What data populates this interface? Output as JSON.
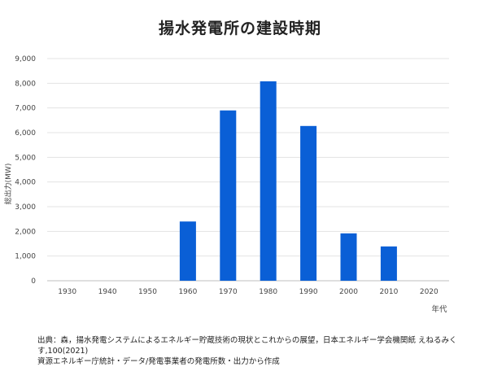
{
  "chart_data": {
    "type": "bar",
    "title": "揚水発電所の建設時期",
    "xlabel": "年代",
    "ylabel": "総出力(MW)",
    "categories": [
      "1930",
      "1940",
      "1950",
      "1960",
      "1970",
      "1980",
      "1990",
      "2000",
      "2010",
      "2020"
    ],
    "values": [
      0,
      0,
      0,
      2400,
      6900,
      8080,
      6270,
      1920,
      1390,
      0
    ],
    "ylim": [
      0,
      9000
    ],
    "yticks": [
      "0",
      "1,000",
      "2,000",
      "3,000",
      "4,000",
      "5,000",
      "6,000",
      "7,000",
      "8,000",
      "9,000"
    ],
    "grid": true,
    "bar_color": "#0a5fd6"
  },
  "source": {
    "line1": "出典：森，揚水発電システムによるエネルギー貯蔵技術の現状とこれからの展望，日本エネルギー学会機関紙 えねるみくす,100(2021)",
    "line2": "資源エネルギー庁統計・データ/発電事業者の発電所数・出力から作成"
  }
}
